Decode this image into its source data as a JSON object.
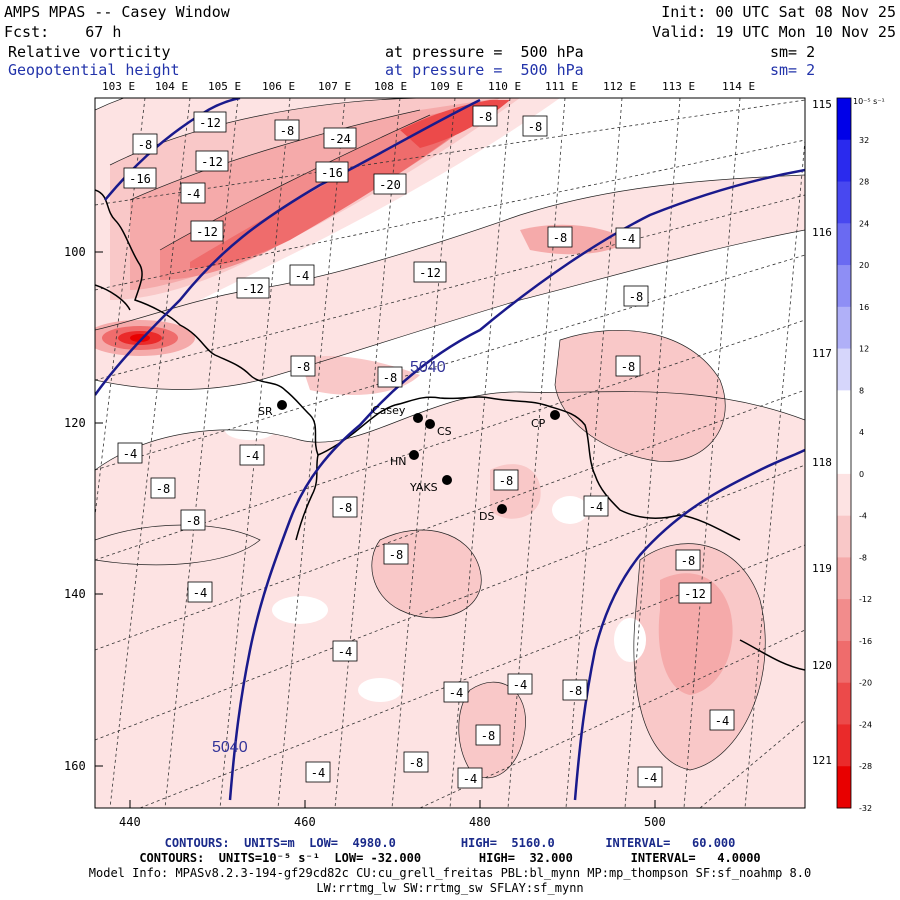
{
  "header": {
    "title": "AMPS MPAS -- Casey Window",
    "init": "Init: 00 UTC Sat 08 Nov 25",
    "fcst": "Fcst:    67 h",
    "valid": "Valid: 19 UTC Mon 10 Nov 25",
    "field1_name": "Relative vorticity",
    "field1_level": "at pressure =  500 hPa",
    "field1_sm": "sm= 2",
    "field2_name": "Geopotential height",
    "field2_level": "at pressure =  500 hPa",
    "field2_sm": "sm= 2"
  },
  "axes": {
    "x_ticks": [
      "440",
      "460",
      "480",
      "500"
    ],
    "y_ticks": [
      "100",
      "120",
      "140",
      "160"
    ],
    "top_lon_labels": [
      "103 E",
      "104 E",
      "105 E",
      "106 E",
      "107 E",
      "108 E",
      "109 E",
      "110 E",
      "111 E",
      "112 E",
      "113 E",
      "114 E"
    ],
    "right_lon_labels": [
      "115 E",
      "116 E",
      "117 E",
      "118 E",
      "119 E",
      "120 E",
      "121 E"
    ]
  },
  "colorbar": {
    "unit_label": "10⁻⁵ s⁻¹",
    "ticks": [
      "32",
      "28",
      "24",
      "20",
      "16",
      "12",
      "8",
      "4",
      "0",
      "-4",
      "-8",
      "-12",
      "-16",
      "-20",
      "-24",
      "-28",
      "-32"
    ],
    "colors": [
      "#0000e8",
      "#2a2aee",
      "#4848f0",
      "#6a6af2",
      "#8e8ef5",
      "#b0b0f8",
      "#d6d6fb",
      "#ffffff",
      "#ffffff",
      "#fde3e3",
      "#f9c8c8",
      "#f5aaaa",
      "#f28c8c",
      "#ef6c6c",
      "#ec4a4a",
      "#ea2a2a",
      "#e80000"
    ]
  },
  "vorticity_labels": [
    "-12",
    "-8",
    "-8",
    "-24",
    "-8",
    "-8",
    "-12",
    "-16",
    "-16",
    "-20",
    "-4",
    "-12",
    "-4",
    "-12",
    "-8",
    "-4",
    "-12",
    "-8",
    "-8",
    "-8",
    "-8",
    "-4",
    "-4",
    "-8",
    "-8",
    "-8",
    "-8",
    "-8",
    "-8",
    "-4",
    "-4",
    "-12",
    "-4",
    "-4",
    "-4",
    "-8",
    "-4",
    "-8",
    "-8",
    "-4",
    "-4",
    "-4"
  ],
  "height_labels": [
    "5040",
    "5040"
  ],
  "stations": [
    "Casey",
    "SR",
    "CS",
    "HN",
    "YAKS",
    "CP",
    "DS"
  ],
  "footer": {
    "line1": "CONTOURS:  UNITS=m  LOW=  4980.0         HIGH=  5160.0       INTERVAL=   60.000",
    "line2": "CONTOURS:  UNITS=10⁻⁵ s⁻¹  LOW= -32.000        HIGH=  32.000        INTERVAL=   4.0000",
    "line3": "Model Info: MPASv8.2.3-194-gf29cd82c CU:cu_grell_freitas PBL:bl_mynn MP:mp_thompson SF:sf_noahmp 8.0",
    "line4": "LW:rrtmg_lw SW:rrtmg_sw SFLAY:sf_mynn"
  },
  "colors": {
    "height_contour": "#1a1a8c",
    "coast": "#000000",
    "shade_light": "#fde3e3",
    "shade_mid": "#f5aaaa",
    "shade_strong": "#ec4a4a"
  }
}
